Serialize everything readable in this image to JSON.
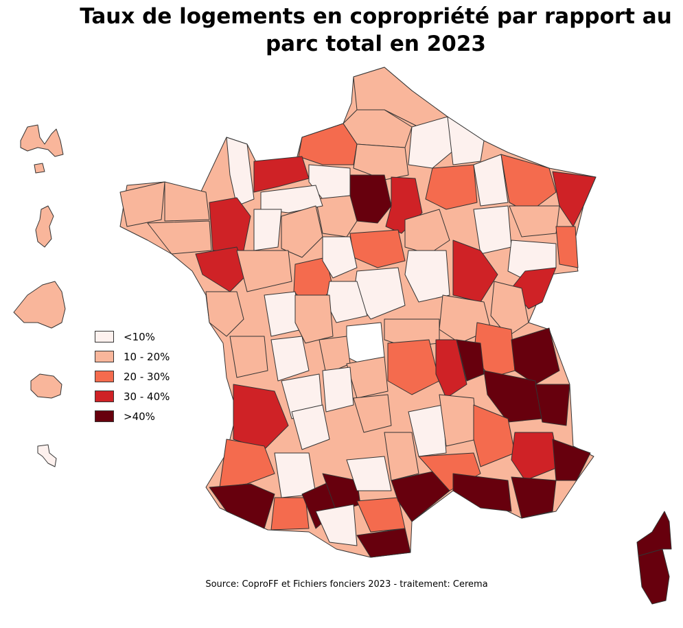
{
  "title": "Taux de logements en copropriété par rapport au parc total en 2023",
  "source": "Source: CoproFF et Fichiers fonciers 2023 - traitement: Cerema",
  "legend": {
    "items": [
      {
        "label": "<10%",
        "color": "#fdf1ee"
      },
      {
        "label": "10 - 20%",
        "color": "#f9b69b"
      },
      {
        "label": "20 - 30%",
        "color": "#f46b4e"
      },
      {
        "label": "30 - 40%",
        "color": "#cf2226"
      },
      {
        "label": ">40%",
        "color": "#67000d"
      }
    ]
  },
  "colors": {
    "c1": "#fdf1ee",
    "c2": "#f9b69b",
    "c3": "#f46b4e",
    "c4": "#cf2226",
    "c5": "#67000d",
    "nodata": "#ffffff"
  }
}
